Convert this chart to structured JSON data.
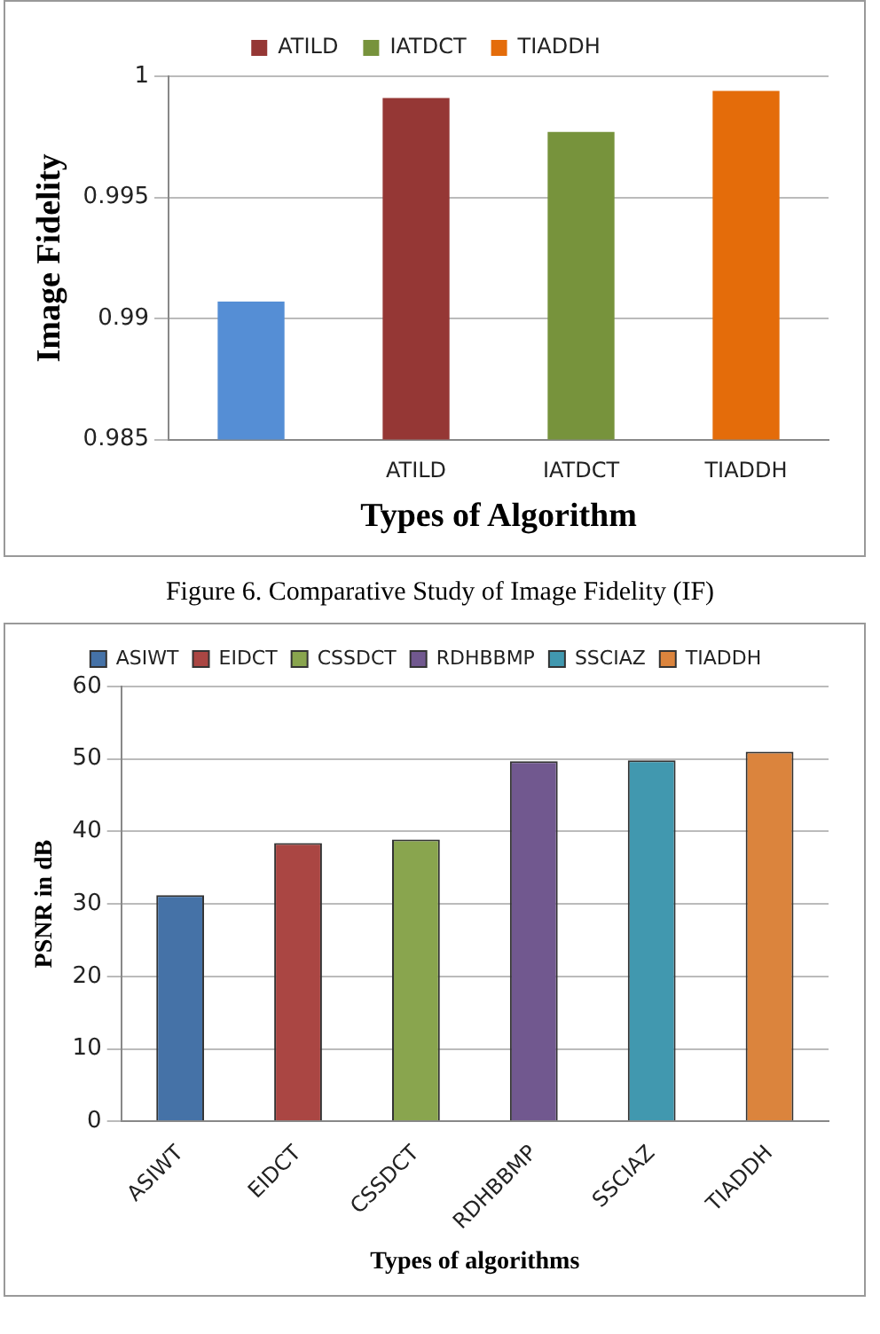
{
  "chart_data": [
    {
      "type": "bar",
      "categories": [
        null,
        "ATILD",
        "IATDCT",
        "TIADDH"
      ],
      "series": [
        {
          "color": "#558ed5",
          "values": [
            0.9907,
            null,
            null,
            null
          ]
        },
        {
          "name": "ATILD",
          "color": "#953735",
          "values": [
            null,
            0.9991,
            null,
            null
          ]
        },
        {
          "name": "IATDCT",
          "color": "#77933c",
          "values": [
            null,
            null,
            0.9977,
            null
          ]
        },
        {
          "name": "TIADDH",
          "color": "#e46c0a",
          "values": [
            null,
            null,
            null,
            0.9994
          ]
        }
      ],
      "xlabel": "Types of Algorithm",
      "ylabel": "Image Fidelity",
      "ylim": [
        0.985,
        1.0
      ],
      "yticks": [
        0.985,
        0.99,
        0.995,
        1
      ],
      "grid": "y",
      "legend": "top",
      "annotations": [
        "Figure 6. Comparative Study of Image Fidelity (IF)"
      ]
    },
    {
      "type": "bar",
      "categories": [
        "ASIWT",
        "EIDCT",
        "CSSDCT",
        "RDHBBMP",
        "SSCIAZ",
        "TIADDH"
      ],
      "series": [
        {
          "name": "ASIWT",
          "color": "#4572a7",
          "values": [
            31.2,
            null,
            null,
            null,
            null,
            null
          ]
        },
        {
          "name": "EIDCT",
          "color": "#aa4643",
          "values": [
            null,
            38.4,
            null,
            null,
            null,
            null
          ]
        },
        {
          "name": "CSSDCT",
          "color": "#89a54e",
          "values": [
            null,
            null,
            38.9,
            null,
            null,
            null
          ]
        },
        {
          "name": "RDHBBMP",
          "color": "#71588f",
          "values": [
            null,
            null,
            null,
            49.7,
            null,
            null
          ]
        },
        {
          "name": "SSCIAZ",
          "color": "#4198af",
          "values": [
            null,
            null,
            null,
            null,
            49.8,
            null
          ]
        },
        {
          "name": "TIADDH",
          "color": "#db843d",
          "values": [
            null,
            null,
            null,
            null,
            null,
            51.0
          ]
        }
      ],
      "xlabel": "Types of algorithms",
      "ylabel": "PSNR in dB",
      "ylim": [
        0,
        60
      ],
      "yticks": [
        0,
        10,
        20,
        30,
        40,
        50,
        60
      ],
      "grid": "y",
      "legend": "top"
    }
  ]
}
